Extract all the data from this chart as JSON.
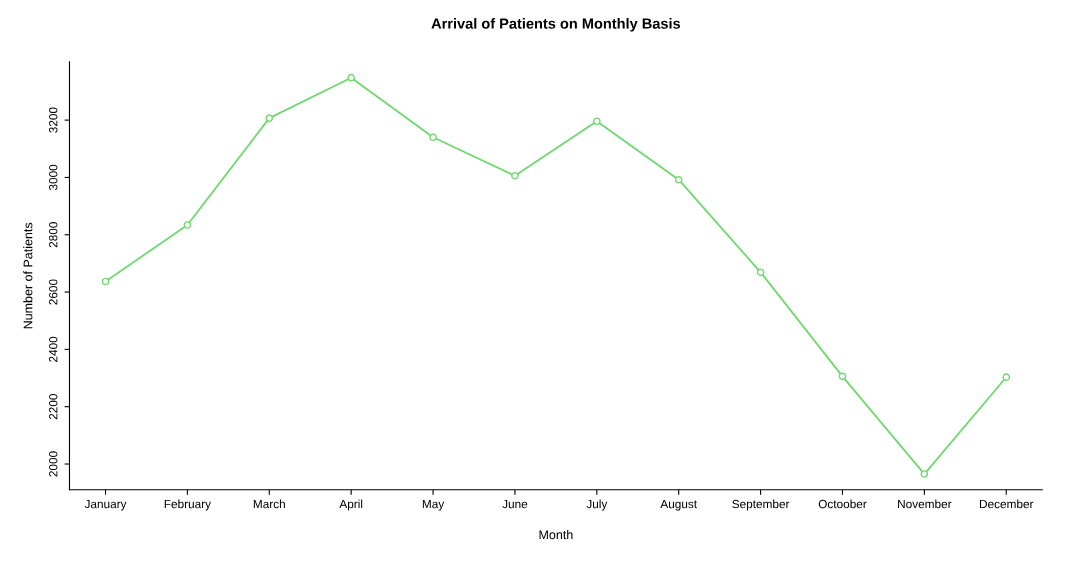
{
  "chart_data": {
    "type": "line",
    "title": "Arrival of Patients on Monthly Basis",
    "xlabel": "Month",
    "ylabel": "Number of Patients",
    "categories": [
      "January",
      "February",
      "March",
      "April",
      "May",
      "June",
      "July",
      "August",
      "September",
      "Octoober",
      "November",
      "December"
    ],
    "series": [
      {
        "color": "#6fd86f",
        "values": [
          2637,
          2834,
          3207,
          3348,
          3140,
          3006,
          3196,
          2992,
          2669,
          2306,
          1965,
          2303
        ]
      }
    ],
    "ylim": [
      1910,
      3403
    ],
    "yticks": [
      2000,
      2200,
      2400,
      2600,
      2800,
      3000,
      3200
    ],
    "marker": "circle",
    "line_style": "solid",
    "grid": false,
    "legend": false
  }
}
